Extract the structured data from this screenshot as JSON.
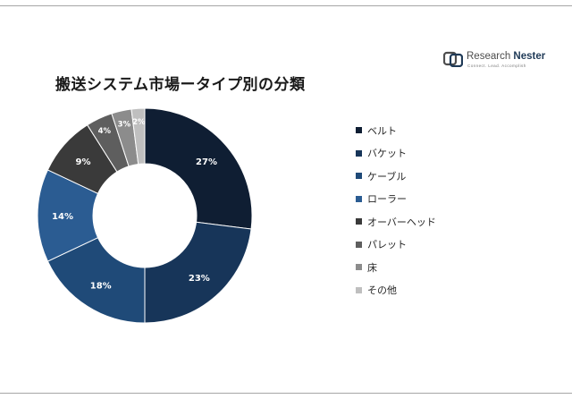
{
  "title": "搬送システム市場ータイプ別の分類",
  "logo": {
    "name_part1": "Research",
    "name_part2": "Nester",
    "tagline": "Connect. Lead. Accomplish"
  },
  "chart_data": {
    "type": "donut",
    "title": "搬送システム市場ータイプ別の分類",
    "legend_position": "right",
    "categories": [
      "ベルト",
      "バケット",
      "ケーブル",
      "ローラー",
      "オーバーヘッド",
      "パレット",
      "床",
      "その他"
    ],
    "values": [
      27,
      23,
      18,
      14,
      9,
      4,
      3,
      2
    ],
    "data_labels": [
      "27%",
      "23%",
      "18%",
      "14%",
      "9%",
      "4%",
      "3%",
      "2%"
    ],
    "colors": [
      "#0f1e33",
      "#173559",
      "#1f4a78",
      "#2b5c92",
      "#3a3a3a",
      "#5e5e5e",
      "#8c8c8c",
      "#bfbfbf"
    ]
  }
}
